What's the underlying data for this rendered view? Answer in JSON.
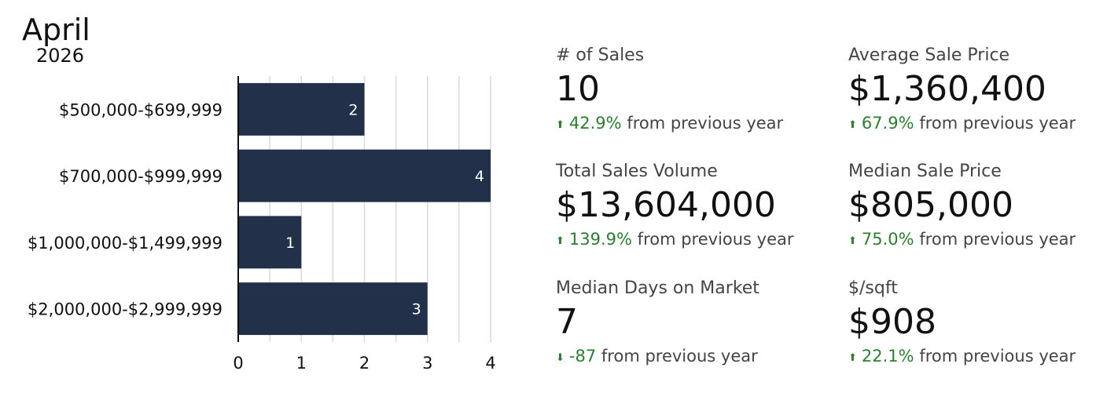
{
  "header": {
    "month": "April",
    "year": "2026"
  },
  "chart_data": {
    "type": "bar",
    "orientation": "horizontal",
    "categories": [
      "$500,000-$699,999",
      "$700,000-$999,999",
      "$1,000,000-$1,499,999",
      "$2,000,000-$2,999,999"
    ],
    "values": [
      2,
      4,
      1,
      3
    ],
    "xlim": [
      0,
      4
    ],
    "xticks": [
      0,
      1,
      2,
      3,
      4
    ],
    "grid": true,
    "bar_color": "#223049",
    "data_labels": true
  },
  "stats": [
    {
      "label": "# of Sales",
      "value": "10",
      "direction": "up",
      "change": "42.9%",
      "suffix": "from previous year"
    },
    {
      "label": "Average Sale Price",
      "value": "$1,360,400",
      "direction": "up",
      "change": "67.9%",
      "suffix": "from previous year"
    },
    {
      "label": "Total Sales Volume",
      "value": "$13,604,000",
      "direction": "up",
      "change": "139.9%",
      "suffix": "from previous year"
    },
    {
      "label": "Median Sale Price",
      "value": "$805,000",
      "direction": "up",
      "change": "75.0%",
      "suffix": "from previous year"
    },
    {
      "label": "Median Days on Market",
      "value": "7",
      "direction": "down",
      "change": "-87",
      "suffix": "from previous year"
    },
    {
      "label": "$/sqft",
      "value": "$908",
      "direction": "up",
      "change": "22.1%",
      "suffix": "from previous year"
    }
  ],
  "colors": {
    "positive": "#2e7d32",
    "bar": "#223049"
  }
}
